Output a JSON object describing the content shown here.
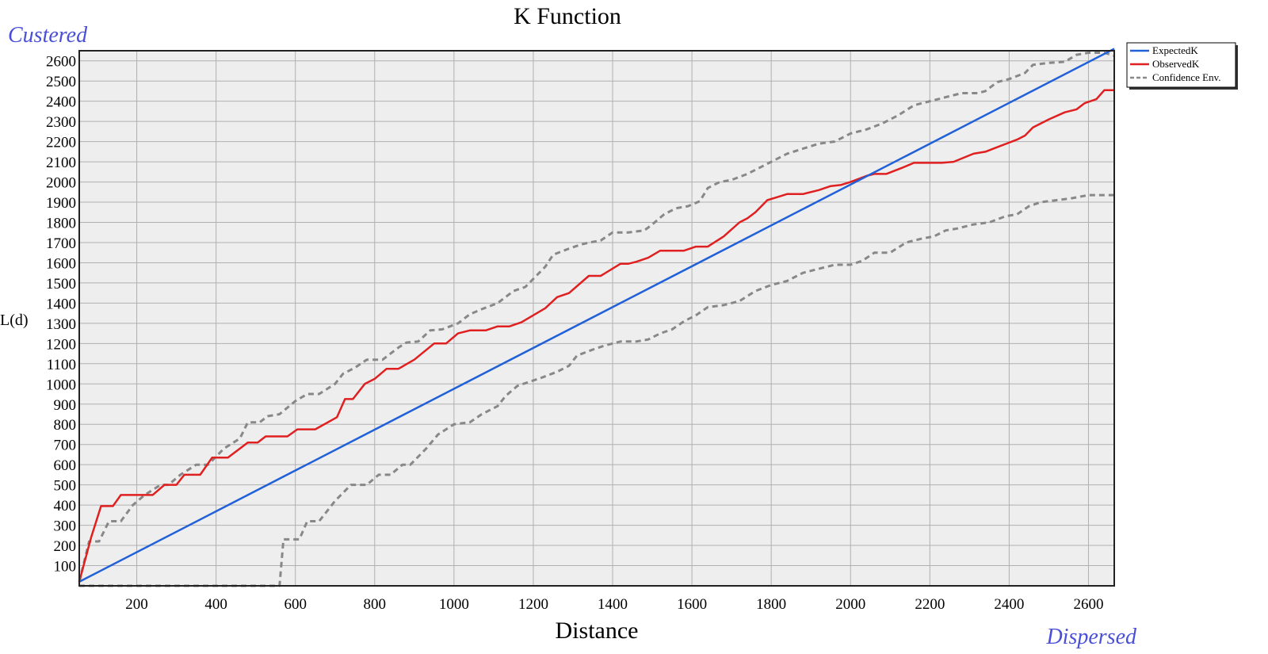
{
  "chart_data": {
    "type": "line",
    "title": "K Function",
    "xlabel": "Distance",
    "ylabel": "L(d)",
    "corner_labels": {
      "top_left": "Custered",
      "bottom_right": "Dispersed"
    },
    "xlim": [
      55,
      2665
    ],
    "ylim": [
      0,
      2650
    ],
    "x_ticks": [
      200,
      400,
      600,
      800,
      1000,
      1200,
      1400,
      1600,
      1800,
      2000,
      2200,
      2400,
      2600
    ],
    "y_ticks": [
      100,
      200,
      300,
      400,
      500,
      600,
      700,
      800,
      900,
      1000,
      1100,
      1200,
      1300,
      1400,
      1500,
      1600,
      1700,
      1800,
      1900,
      2000,
      2100,
      2200,
      2300,
      2400,
      2500,
      2600
    ],
    "grid": true,
    "plot_background": "#eeeeee",
    "legend_position": "top-right",
    "series": [
      {
        "name": "ExpectedK",
        "color": "#2060d8",
        "style": "solid",
        "points": [
          [
            55,
            20
          ],
          [
            2665,
            2660
          ]
        ]
      },
      {
        "name": "ObservedK",
        "color": "#e02020",
        "style": "solid",
        "points": [
          [
            55,
            20
          ],
          [
            85,
            240
          ],
          [
            110,
            395
          ],
          [
            140,
            395
          ],
          [
            160,
            450
          ],
          [
            220,
            450
          ],
          [
            240,
            450
          ],
          [
            270,
            500
          ],
          [
            300,
            500
          ],
          [
            320,
            550
          ],
          [
            360,
            550
          ],
          [
            390,
            635
          ],
          [
            430,
            635
          ],
          [
            480,
            710
          ],
          [
            505,
            710
          ],
          [
            525,
            740
          ],
          [
            580,
            740
          ],
          [
            605,
            775
          ],
          [
            650,
            775
          ],
          [
            705,
            835
          ],
          [
            725,
            925
          ],
          [
            745,
            925
          ],
          [
            775,
            1000
          ],
          [
            800,
            1025
          ],
          [
            830,
            1075
          ],
          [
            860,
            1075
          ],
          [
            900,
            1120
          ],
          [
            950,
            1200
          ],
          [
            980,
            1200
          ],
          [
            1010,
            1250
          ],
          [
            1040,
            1265
          ],
          [
            1080,
            1265
          ],
          [
            1110,
            1285
          ],
          [
            1140,
            1285
          ],
          [
            1170,
            1305
          ],
          [
            1230,
            1375
          ],
          [
            1260,
            1430
          ],
          [
            1290,
            1450
          ],
          [
            1340,
            1535
          ],
          [
            1370,
            1535
          ],
          [
            1420,
            1595
          ],
          [
            1440,
            1595
          ],
          [
            1460,
            1605
          ],
          [
            1490,
            1625
          ],
          [
            1520,
            1660
          ],
          [
            1580,
            1660
          ],
          [
            1610,
            1680
          ],
          [
            1640,
            1680
          ],
          [
            1680,
            1730
          ],
          [
            1720,
            1800
          ],
          [
            1740,
            1820
          ],
          [
            1760,
            1850
          ],
          [
            1790,
            1910
          ],
          [
            1815,
            1925
          ],
          [
            1840,
            1940
          ],
          [
            1880,
            1940
          ],
          [
            1920,
            1960
          ],
          [
            1950,
            1980
          ],
          [
            1975,
            1985
          ],
          [
            2000,
            2000
          ],
          [
            2040,
            2030
          ],
          [
            2060,
            2040
          ],
          [
            2090,
            2040
          ],
          [
            2130,
            2070
          ],
          [
            2160,
            2095
          ],
          [
            2230,
            2095
          ],
          [
            2260,
            2100
          ],
          [
            2310,
            2140
          ],
          [
            2340,
            2150
          ],
          [
            2380,
            2180
          ],
          [
            2420,
            2210
          ],
          [
            2440,
            2230
          ],
          [
            2460,
            2270
          ],
          [
            2500,
            2310
          ],
          [
            2540,
            2345
          ],
          [
            2570,
            2360
          ],
          [
            2590,
            2390
          ],
          [
            2620,
            2410
          ],
          [
            2640,
            2455
          ],
          [
            2665,
            2455
          ]
        ]
      },
      {
        "name": "Confidence Env.",
        "color": "#888888",
        "style": "dashed",
        "points": [
          [
            55,
            20
          ],
          [
            80,
            220
          ],
          [
            105,
            220
          ],
          [
            130,
            320
          ],
          [
            160,
            320
          ],
          [
            190,
            400
          ],
          [
            220,
            450
          ],
          [
            260,
            500
          ],
          [
            280,
            500
          ],
          [
            310,
            550
          ],
          [
            350,
            600
          ],
          [
            380,
            600
          ],
          [
            420,
            680
          ],
          [
            460,
            730
          ],
          [
            480,
            810
          ],
          [
            510,
            810
          ],
          [
            530,
            840
          ],
          [
            560,
            850
          ],
          [
            600,
            915
          ],
          [
            630,
            950
          ],
          [
            660,
            950
          ],
          [
            700,
            1000
          ],
          [
            720,
            1050
          ],
          [
            750,
            1080
          ],
          [
            780,
            1120
          ],
          [
            820,
            1120
          ],
          [
            860,
            1180
          ],
          [
            880,
            1205
          ],
          [
            910,
            1210
          ],
          [
            940,
            1265
          ],
          [
            970,
            1270
          ],
          [
            1010,
            1300
          ],
          [
            1040,
            1345
          ],
          [
            1070,
            1370
          ],
          [
            1110,
            1400
          ],
          [
            1150,
            1460
          ],
          [
            1180,
            1480
          ],
          [
            1200,
            1520
          ],
          [
            1230,
            1580
          ],
          [
            1250,
            1640
          ],
          [
            1290,
            1670
          ],
          [
            1320,
            1690
          ],
          [
            1340,
            1700
          ],
          [
            1370,
            1710
          ],
          [
            1400,
            1750
          ],
          [
            1440,
            1750
          ],
          [
            1480,
            1760
          ],
          [
            1500,
            1790
          ],
          [
            1530,
            1840
          ],
          [
            1560,
            1870
          ],
          [
            1590,
            1880
          ],
          [
            1620,
            1905
          ],
          [
            1640,
            1970
          ],
          [
            1670,
            2000
          ],
          [
            1700,
            2010
          ],
          [
            1740,
            2040
          ],
          [
            1770,
            2070
          ],
          [
            1800,
            2100
          ],
          [
            1840,
            2140
          ],
          [
            1880,
            2165
          ],
          [
            1920,
            2190
          ],
          [
            1960,
            2200
          ],
          [
            2000,
            2240
          ],
          [
            2040,
            2260
          ],
          [
            2080,
            2290
          ],
          [
            2120,
            2330
          ],
          [
            2160,
            2380
          ],
          [
            2200,
            2400
          ],
          [
            2240,
            2420
          ],
          [
            2280,
            2440
          ],
          [
            2320,
            2440
          ],
          [
            2340,
            2450
          ],
          [
            2370,
            2495
          ],
          [
            2400,
            2510
          ],
          [
            2440,
            2540
          ],
          [
            2460,
            2580
          ],
          [
            2500,
            2590
          ],
          [
            2540,
            2595
          ],
          [
            2570,
            2630
          ],
          [
            2600,
            2640
          ],
          [
            2640,
            2640
          ],
          [
            2665,
            2625
          ]
        ]
      },
      {
        "name": "Confidence Env.",
        "color": "#888888",
        "style": "dashed",
        "legend": false,
        "points": [
          [
            55,
            0
          ],
          [
            540,
            0
          ],
          [
            560,
            0
          ],
          [
            570,
            230
          ],
          [
            610,
            230
          ],
          [
            630,
            320
          ],
          [
            660,
            320
          ],
          [
            700,
            420
          ],
          [
            740,
            500
          ],
          [
            780,
            500
          ],
          [
            810,
            550
          ],
          [
            840,
            550
          ],
          [
            870,
            600
          ],
          [
            890,
            600
          ],
          [
            930,
            680
          ],
          [
            960,
            750
          ],
          [
            1000,
            800
          ],
          [
            1040,
            810
          ],
          [
            1070,
            850
          ],
          [
            1110,
            890
          ],
          [
            1130,
            940
          ],
          [
            1160,
            990
          ],
          [
            1190,
            1010
          ],
          [
            1220,
            1030
          ],
          [
            1260,
            1060
          ],
          [
            1290,
            1090
          ],
          [
            1310,
            1140
          ],
          [
            1350,
            1170
          ],
          [
            1380,
            1190
          ],
          [
            1420,
            1210
          ],
          [
            1460,
            1210
          ],
          [
            1490,
            1220
          ],
          [
            1520,
            1250
          ],
          [
            1550,
            1270
          ],
          [
            1580,
            1310
          ],
          [
            1610,
            1340
          ],
          [
            1640,
            1380
          ],
          [
            1680,
            1390
          ],
          [
            1720,
            1410
          ],
          [
            1760,
            1460
          ],
          [
            1800,
            1490
          ],
          [
            1840,
            1510
          ],
          [
            1880,
            1550
          ],
          [
            1920,
            1570
          ],
          [
            1960,
            1590
          ],
          [
            2000,
            1590
          ],
          [
            2030,
            1610
          ],
          [
            2060,
            1650
          ],
          [
            2100,
            1650
          ],
          [
            2140,
            1700
          ],
          [
            2180,
            1720
          ],
          [
            2210,
            1730
          ],
          [
            2240,
            1760
          ],
          [
            2270,
            1770
          ],
          [
            2310,
            1790
          ],
          [
            2350,
            1800
          ],
          [
            2390,
            1830
          ],
          [
            2420,
            1840
          ],
          [
            2450,
            1880
          ],
          [
            2480,
            1900
          ],
          [
            2520,
            1910
          ],
          [
            2560,
            1920
          ],
          [
            2600,
            1935
          ],
          [
            2665,
            1935
          ]
        ]
      }
    ]
  }
}
